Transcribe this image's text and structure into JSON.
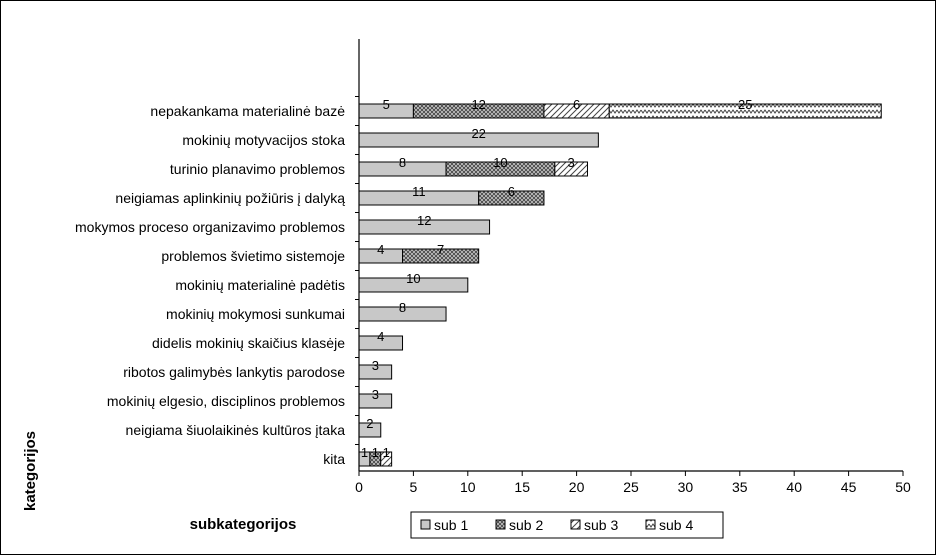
{
  "chart_data": {
    "type": "bar",
    "orientation": "horizontal",
    "stacked": true,
    "categories": [
      "nepakankama materialinė bazė",
      "mokinių motyvacijos stoka",
      "turinio planavimo problemos",
      "neigiamas aplinkinių požiūris į dalyką",
      "mokymos proceso organizavimo problemos",
      "problemos švietimo sistemoje",
      "mokinių materialinė padėtis",
      "mokinių mokymosi sunkumai",
      "didelis mokinių skaičius klasėje",
      "ribotos galimybės lankytis parodose",
      "mokinių elgesio, disciplinos problemos",
      "neigiama šiuolaikinės kultūros įtaka",
      "kita"
    ],
    "series": [
      {
        "name": "sub 1",
        "values": [
          5,
          22,
          8,
          11,
          12,
          4,
          10,
          8,
          4,
          3,
          3,
          2,
          1
        ],
        "color": "#c8c8c8",
        "pattern": "solid"
      },
      {
        "name": "sub 2",
        "values": [
          12,
          0,
          10,
          6,
          0,
          7,
          0,
          0,
          0,
          0,
          0,
          0,
          1
        ],
        "color": "#888888",
        "pattern": "crosshatch"
      },
      {
        "name": "sub 3",
        "values": [
          6,
          0,
          3,
          0,
          0,
          0,
          0,
          0,
          0,
          0,
          0,
          0,
          1
        ],
        "color": "#ffffff",
        "pattern": "diagonal"
      },
      {
        "name": "sub 4",
        "values": [
          25,
          0,
          0,
          0,
          0,
          0,
          0,
          0,
          0,
          0,
          0,
          0,
          0
        ],
        "color": "#ffffff",
        "pattern": "zigzag"
      }
    ],
    "xlim": [
      0,
      50
    ],
    "xticks": [
      0,
      5,
      10,
      15,
      20,
      25,
      30,
      35,
      40,
      45,
      50
    ],
    "xlabel": "subkategorijos",
    "ylabel": "kategorijos",
    "legend_position": "bottom",
    "grid": false
  }
}
